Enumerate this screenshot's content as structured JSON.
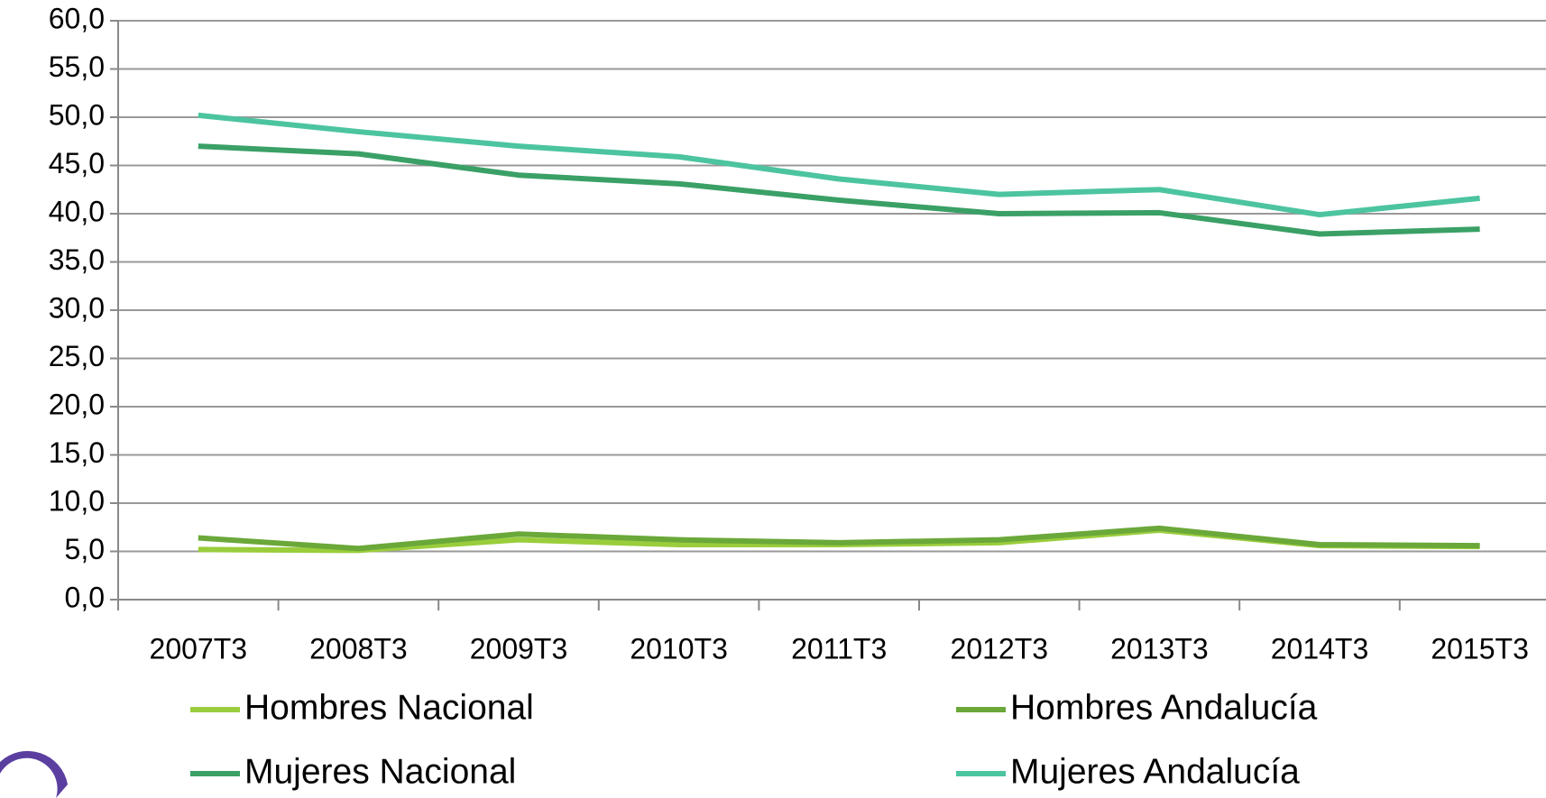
{
  "chart_data": {
    "type": "line",
    "categories": [
      "2007T3",
      "2008T3",
      "2009T3",
      "2010T3",
      "2011T3",
      "2012T3",
      "2013T3",
      "2014T3",
      "2015T3"
    ],
    "series": [
      {
        "name": "Hombres Nacional",
        "color": "#9acd3c",
        "values": [
          5.2,
          5.1,
          6.2,
          5.7,
          5.7,
          5.9,
          7.2,
          5.6,
          5.5
        ]
      },
      {
        "name": "Hombres Andalucía",
        "color": "#6aa83a",
        "values": [
          6.4,
          5.3,
          6.8,
          6.2,
          5.9,
          6.2,
          7.4,
          5.7,
          5.6
        ]
      },
      {
        "name": "Mujeres Nacional",
        "color": "#3aa066",
        "values": [
          47.0,
          46.2,
          44.0,
          43.1,
          41.4,
          40.0,
          40.1,
          37.9,
          38.4
        ]
      },
      {
        "name": "Mujeres Andalucía",
        "color": "#4cc4a0",
        "values": [
          50.2,
          48.5,
          47.0,
          45.9,
          43.6,
          42.0,
          42.5,
          39.9,
          41.6
        ]
      }
    ],
    "ylim": [
      0,
      60
    ],
    "yticks": [
      {
        "value": 0,
        "label": "0,0"
      },
      {
        "value": 5,
        "label": "5,0"
      },
      {
        "value": 10,
        "label": "10,0"
      },
      {
        "value": 15,
        "label": "15,0"
      },
      {
        "value": 20,
        "label": "20,0"
      },
      {
        "value": 25,
        "label": "25,0"
      },
      {
        "value": 30,
        "label": "30,0"
      },
      {
        "value": 35,
        "label": "35,0"
      },
      {
        "value": 40,
        "label": "40,0"
      },
      {
        "value": 45,
        "label": "45,0"
      },
      {
        "value": 50,
        "label": "50,0"
      },
      {
        "value": 55,
        "label": "55,0"
      },
      {
        "value": 60,
        "label": "60,0"
      }
    ],
    "grid": true
  }
}
